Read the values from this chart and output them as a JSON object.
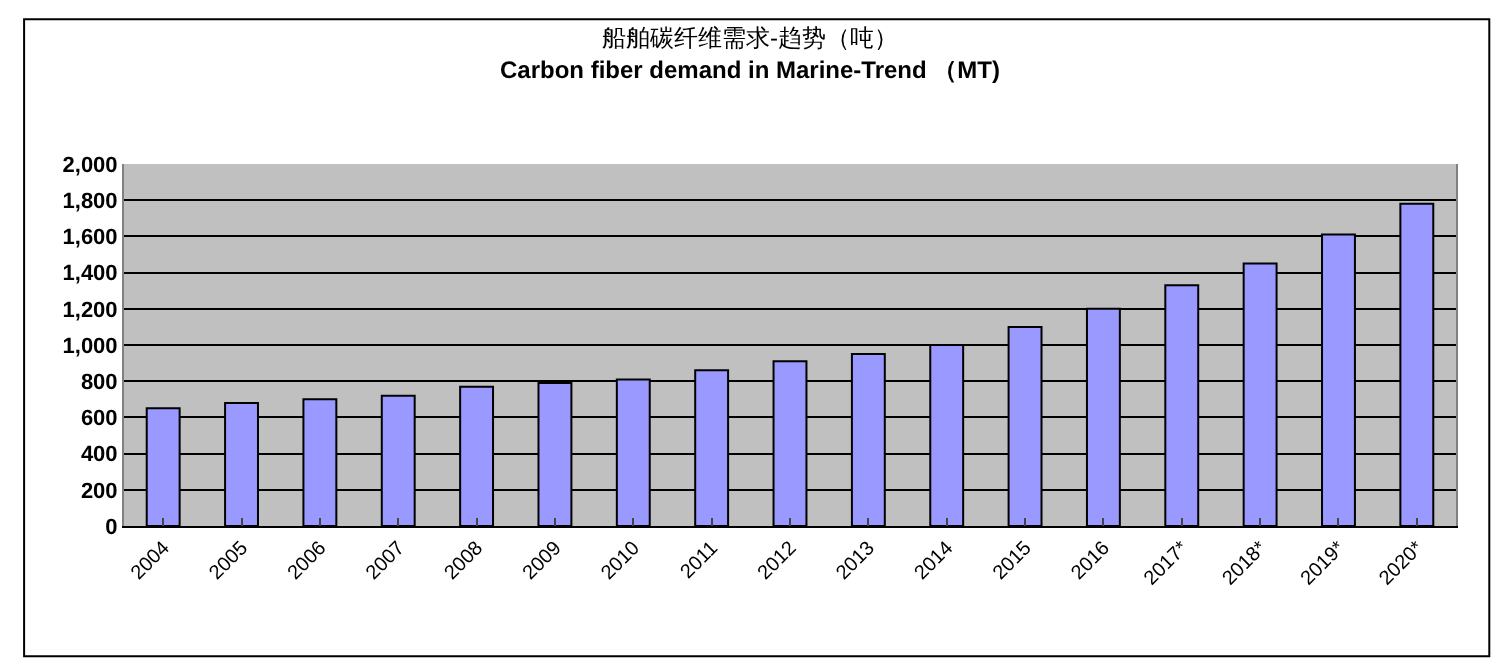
{
  "chart_data": {
    "type": "bar",
    "title": "船舶碳纤维需求-趋势（吨）",
    "subtitle": "Carbon fiber demand in Marine-Trend （MT)",
    "categories": [
      "2004",
      "2005",
      "2006",
      "2007",
      "2008",
      "2009",
      "2010",
      "2011",
      "2012",
      "2013",
      "2014",
      "2015",
      "2016",
      "2017*",
      "2018*",
      "2019*",
      "2020*"
    ],
    "values": [
      650,
      680,
      700,
      720,
      770,
      790,
      810,
      860,
      910,
      950,
      1000,
      1100,
      1200,
      1330,
      1450,
      1610,
      1780
    ],
    "color": "#9999ff",
    "ylim": [
      0,
      2000
    ],
    "yticks": [
      {
        "value": 0,
        "label": "0"
      },
      {
        "value": 200,
        "label": "200"
      },
      {
        "value": 400,
        "label": "400"
      },
      {
        "value": 600,
        "label": "600"
      },
      {
        "value": 800,
        "label": "800"
      },
      {
        "value": 1000,
        "label": "1,000"
      },
      {
        "value": 1200,
        "label": "1,200"
      },
      {
        "value": 1400,
        "label": "1,400"
      },
      {
        "value": 1600,
        "label": "1,600"
      },
      {
        "value": 1800,
        "label": "1,800"
      },
      {
        "value": 2000,
        "label": "2,000"
      }
    ],
    "grid": "y",
    "legend": false
  }
}
